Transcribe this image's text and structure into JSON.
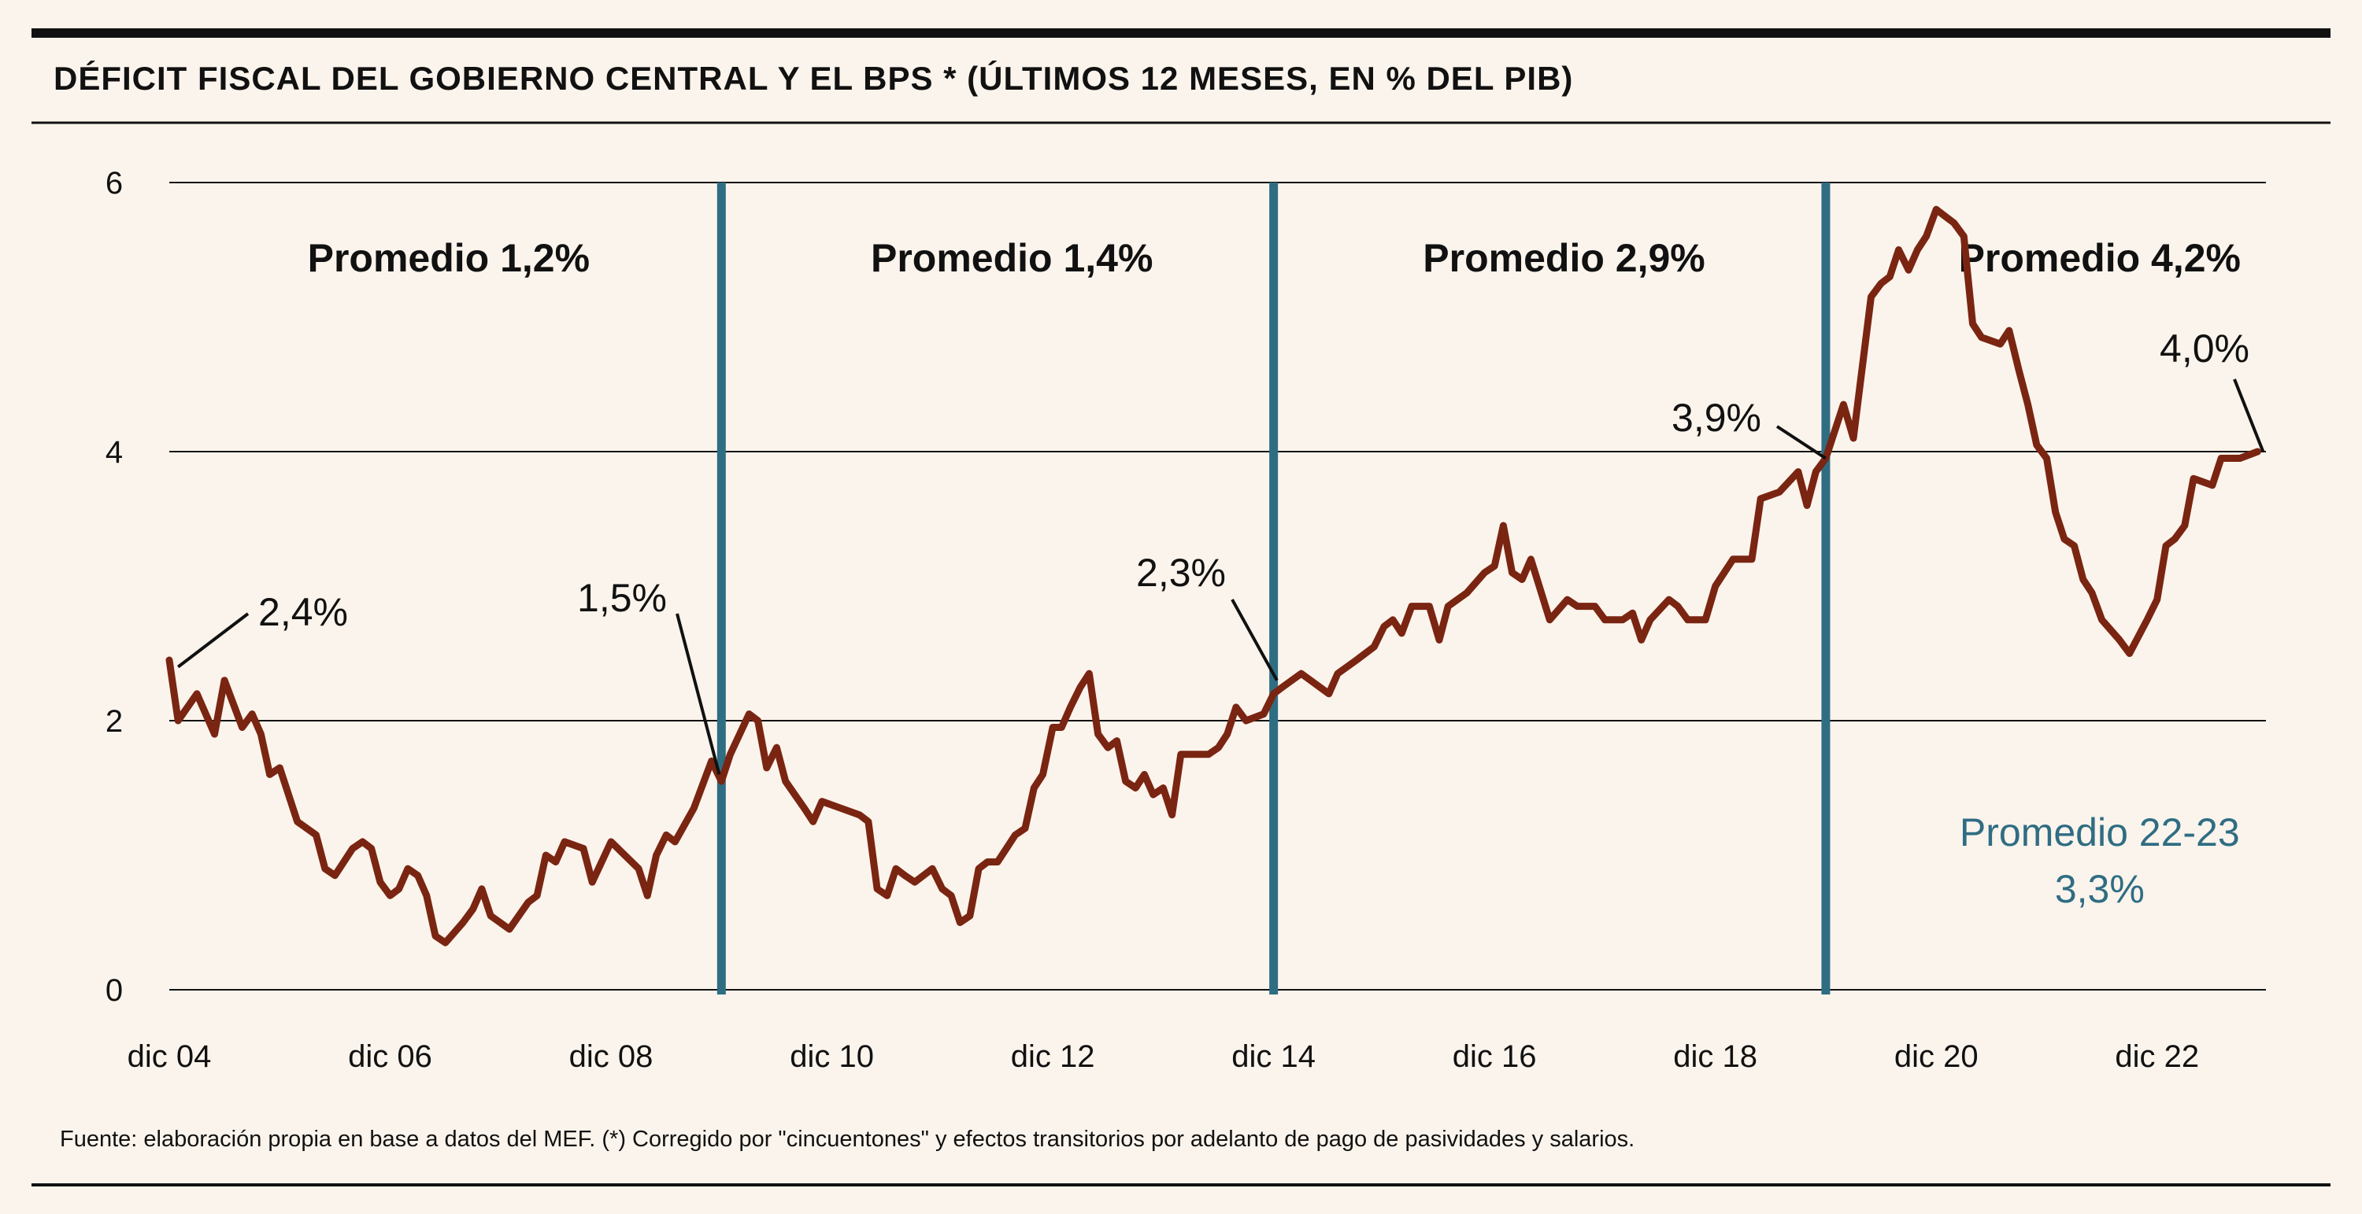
{
  "title": "DÉFICIT FISCAL DEL GOBIERNO CENTRAL Y EL BPS * (ÚLTIMOS 12 MESES, EN % DEL PIB)",
  "source": "Fuente: elaboración propia en base a datos del MEF. (*) Corregido por \"cincuentones\" y efectos transitorios por adelanto de pago de pasividades y salarios.",
  "colors": {
    "series": "#7a2512",
    "divider": "#2f6d83",
    "text": "#111111",
    "background": "#fbf4ec"
  },
  "chart_data": {
    "type": "line",
    "title": "DÉFICIT FISCAL DEL GOBIERNO CENTRAL Y EL BPS * (ÚLTIMOS 12 MESES, EN % DEL PIB)",
    "xlabel": "",
    "ylabel": "",
    "ylim": [
      0,
      6
    ],
    "xlim": [
      2004.92,
      2023.92
    ],
    "grid": true,
    "y_ticks": [
      "0",
      "2",
      "4",
      "6"
    ],
    "x_ticks": [
      {
        "x": 2004.92,
        "label": "dic 04"
      },
      {
        "x": 2006.92,
        "label": "dic 06"
      },
      {
        "x": 2008.92,
        "label": "dic 08"
      },
      {
        "x": 2010.92,
        "label": "dic 10"
      },
      {
        "x": 2012.92,
        "label": "dic 12"
      },
      {
        "x": 2014.92,
        "label": "dic 14"
      },
      {
        "x": 2016.92,
        "label": "dic 16"
      },
      {
        "x": 2018.92,
        "label": "dic 18"
      },
      {
        "x": 2020.92,
        "label": "dic 20"
      },
      {
        "x": 2022.92,
        "label": "dic 22"
      }
    ],
    "period_dividers": [
      2009.92,
      2014.92,
      2019.92
    ],
    "period_labels": [
      {
        "x_center": 2007.45,
        "text": "Promedio 1,2%"
      },
      {
        "x_center": 2012.55,
        "text": "Promedio 1,4%"
      },
      {
        "x_center": 2017.55,
        "text": "Promedio 2,9%"
      },
      {
        "x_center": 2022.4,
        "text": "Promedio 4,2%"
      }
    ],
    "annotations": [
      {
        "text": "2,4%",
        "x": 2005.0,
        "y": 2.4
      },
      {
        "text": "1,5%",
        "x": 2009.9,
        "y": 1.6
      },
      {
        "text": "2,3%",
        "x": 2014.95,
        "y": 2.3
      },
      {
        "text": "3,9%",
        "x": 2019.92,
        "y": 3.95
      },
      {
        "text": "4,0%",
        "x": 2023.88,
        "y": 4.0
      }
    ],
    "sub_average": {
      "lines": [
        "Promedio 22-23",
        "3,3%"
      ],
      "x_center": 2022.4
    },
    "series": [
      {
        "color": "#7a2512",
        "points": [
          [
            2004.92,
            2.45
          ],
          [
            2005.0,
            2.0
          ],
          [
            2005.17,
            2.2
          ],
          [
            2005.33,
            1.9
          ],
          [
            2005.42,
            2.3
          ],
          [
            2005.58,
            1.95
          ],
          [
            2005.67,
            2.05
          ],
          [
            2005.75,
            1.9
          ],
          [
            2005.83,
            1.6
          ],
          [
            2005.92,
            1.65
          ],
          [
            2006.08,
            1.25
          ],
          [
            2006.25,
            1.15
          ],
          [
            2006.33,
            0.9
          ],
          [
            2006.42,
            0.85
          ],
          [
            2006.58,
            1.05
          ],
          [
            2006.67,
            1.1
          ],
          [
            2006.75,
            1.05
          ],
          [
            2006.83,
            0.8
          ],
          [
            2006.92,
            0.7
          ],
          [
            2007.0,
            0.75
          ],
          [
            2007.08,
            0.9
          ],
          [
            2007.17,
            0.85
          ],
          [
            2007.25,
            0.7
          ],
          [
            2007.33,
            0.4
          ],
          [
            2007.42,
            0.35
          ],
          [
            2007.58,
            0.5
          ],
          [
            2007.67,
            0.6
          ],
          [
            2007.75,
            0.75
          ],
          [
            2007.83,
            0.55
          ],
          [
            2008.0,
            0.45
          ],
          [
            2008.17,
            0.65
          ],
          [
            2008.25,
            0.7
          ],
          [
            2008.33,
            1.0
          ],
          [
            2008.42,
            0.95
          ],
          [
            2008.5,
            1.1
          ],
          [
            2008.67,
            1.05
          ],
          [
            2008.75,
            0.8
          ],
          [
            2008.92,
            1.1
          ],
          [
            2009.17,
            0.9
          ],
          [
            2009.25,
            0.7
          ],
          [
            2009.33,
            1.0
          ],
          [
            2009.42,
            1.15
          ],
          [
            2009.5,
            1.1
          ],
          [
            2009.67,
            1.35
          ],
          [
            2009.83,
            1.7
          ],
          [
            2009.92,
            1.55
          ],
          [
            2010.0,
            1.75
          ],
          [
            2010.17,
            2.05
          ],
          [
            2010.25,
            2.0
          ],
          [
            2010.33,
            1.65
          ],
          [
            2010.42,
            1.8
          ],
          [
            2010.5,
            1.55
          ],
          [
            2010.67,
            1.35
          ],
          [
            2010.75,
            1.25
          ],
          [
            2010.83,
            1.4
          ],
          [
            2011.0,
            1.35
          ],
          [
            2011.17,
            1.3
          ],
          [
            2011.25,
            1.25
          ],
          [
            2011.33,
            0.75
          ],
          [
            2011.42,
            0.7
          ],
          [
            2011.5,
            0.9
          ],
          [
            2011.58,
            0.85
          ],
          [
            2011.67,
            0.8
          ],
          [
            2011.83,
            0.9
          ],
          [
            2011.92,
            0.75
          ],
          [
            2012.0,
            0.7
          ],
          [
            2012.08,
            0.5
          ],
          [
            2012.17,
            0.55
          ],
          [
            2012.25,
            0.9
          ],
          [
            2012.33,
            0.95
          ],
          [
            2012.42,
            0.95
          ],
          [
            2012.5,
            1.05
          ],
          [
            2012.58,
            1.15
          ],
          [
            2012.67,
            1.2
          ],
          [
            2012.75,
            1.5
          ],
          [
            2012.83,
            1.6
          ],
          [
            2012.92,
            1.95
          ],
          [
            2013.0,
            1.95
          ],
          [
            2013.08,
            2.1
          ],
          [
            2013.17,
            2.25
          ],
          [
            2013.25,
            2.35
          ],
          [
            2013.33,
            1.9
          ],
          [
            2013.42,
            1.8
          ],
          [
            2013.5,
            1.85
          ],
          [
            2013.58,
            1.55
          ],
          [
            2013.67,
            1.5
          ],
          [
            2013.75,
            1.6
          ],
          [
            2013.83,
            1.45
          ],
          [
            2013.92,
            1.5
          ],
          [
            2014.0,
            1.3
          ],
          [
            2014.08,
            1.75
          ],
          [
            2014.17,
            1.75
          ],
          [
            2014.33,
            1.75
          ],
          [
            2014.42,
            1.8
          ],
          [
            2014.5,
            1.9
          ],
          [
            2014.58,
            2.1
          ],
          [
            2014.67,
            2.0
          ],
          [
            2014.83,
            2.05
          ],
          [
            2014.92,
            2.2
          ],
          [
            2015.0,
            2.25
          ],
          [
            2015.17,
            2.35
          ],
          [
            2015.42,
            2.2
          ],
          [
            2015.5,
            2.35
          ],
          [
            2015.67,
            2.45
          ],
          [
            2015.83,
            2.55
          ],
          [
            2015.92,
            2.7
          ],
          [
            2016.0,
            2.75
          ],
          [
            2016.08,
            2.65
          ],
          [
            2016.17,
            2.85
          ],
          [
            2016.33,
            2.85
          ],
          [
            2016.42,
            2.6
          ],
          [
            2016.5,
            2.85
          ],
          [
            2016.67,
            2.95
          ],
          [
            2016.83,
            3.1
          ],
          [
            2016.92,
            3.15
          ],
          [
            2017.0,
            3.45
          ],
          [
            2017.08,
            3.1
          ],
          [
            2017.17,
            3.05
          ],
          [
            2017.25,
            3.2
          ],
          [
            2017.42,
            2.75
          ],
          [
            2017.58,
            2.9
          ],
          [
            2017.67,
            2.85
          ],
          [
            2017.83,
            2.85
          ],
          [
            2017.92,
            2.75
          ],
          [
            2018.08,
            2.75
          ],
          [
            2018.17,
            2.8
          ],
          [
            2018.25,
            2.6
          ],
          [
            2018.33,
            2.75
          ],
          [
            2018.5,
            2.9
          ],
          [
            2018.58,
            2.85
          ],
          [
            2018.67,
            2.75
          ],
          [
            2018.83,
            2.75
          ],
          [
            2018.92,
            3.0
          ],
          [
            2019.08,
            3.2
          ],
          [
            2019.25,
            3.2
          ],
          [
            2019.33,
            3.65
          ],
          [
            2019.5,
            3.7
          ],
          [
            2019.67,
            3.85
          ],
          [
            2019.75,
            3.6
          ],
          [
            2019.83,
            3.85
          ],
          [
            2019.92,
            3.95
          ],
          [
            2020.08,
            4.35
          ],
          [
            2020.17,
            4.1
          ],
          [
            2020.33,
            5.15
          ],
          [
            2020.42,
            5.25
          ],
          [
            2020.5,
            5.3
          ],
          [
            2020.58,
            5.5
          ],
          [
            2020.67,
            5.35
          ],
          [
            2020.75,
            5.5
          ],
          [
            2020.83,
            5.6
          ],
          [
            2020.92,
            5.8
          ],
          [
            2021.0,
            5.75
          ],
          [
            2021.08,
            5.7
          ],
          [
            2021.17,
            5.6
          ],
          [
            2021.25,
            4.95
          ],
          [
            2021.33,
            4.85
          ],
          [
            2021.5,
            4.8
          ],
          [
            2021.58,
            4.9
          ],
          [
            2021.67,
            4.6
          ],
          [
            2021.75,
            4.35
          ],
          [
            2021.83,
            4.05
          ],
          [
            2021.92,
            3.95
          ],
          [
            2022.0,
            3.55
          ],
          [
            2022.08,
            3.35
          ],
          [
            2022.17,
            3.3
          ],
          [
            2022.25,
            3.05
          ],
          [
            2022.33,
            2.95
          ],
          [
            2022.42,
            2.75
          ],
          [
            2022.58,
            2.6
          ],
          [
            2022.67,
            2.5
          ],
          [
            2022.83,
            2.75
          ],
          [
            2022.92,
            2.9
          ],
          [
            2023.0,
            3.3
          ],
          [
            2023.08,
            3.35
          ],
          [
            2023.17,
            3.45
          ],
          [
            2023.25,
            3.8
          ],
          [
            2023.42,
            3.75
          ],
          [
            2023.5,
            3.95
          ],
          [
            2023.67,
            3.95
          ],
          [
            2023.83,
            4.0
          ]
        ]
      }
    ]
  }
}
